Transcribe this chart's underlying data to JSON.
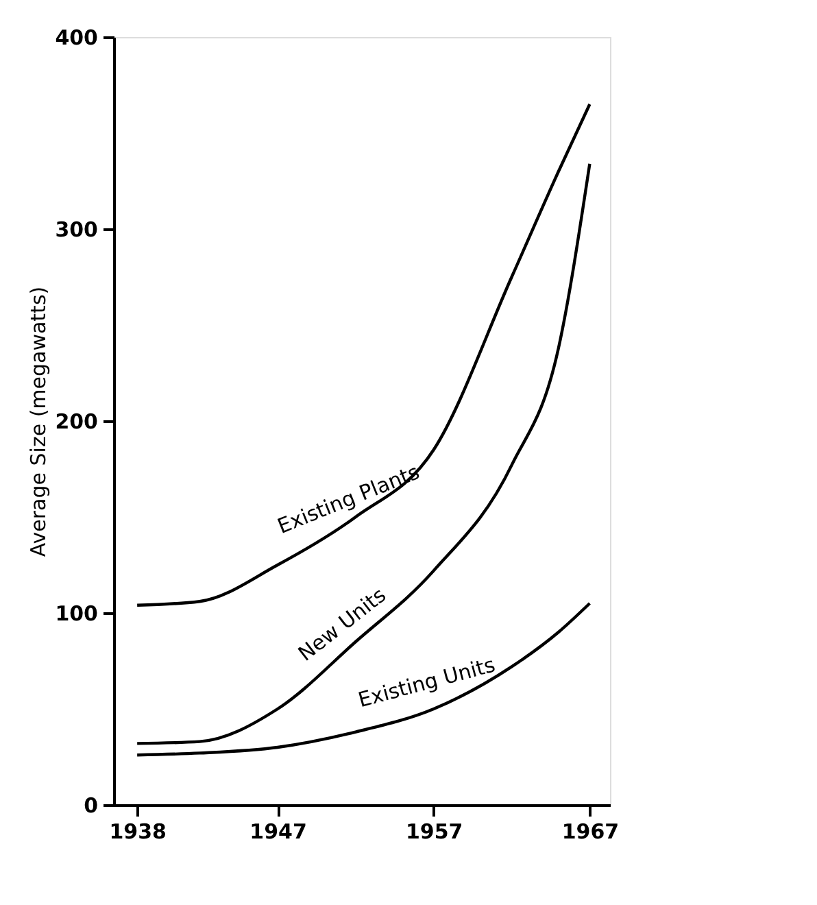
{
  "chart_data": {
    "type": "line",
    "ylabel": "Average Size (megawatts)",
    "x": [
      1938,
      1942,
      1947,
      1952,
      1957,
      1962,
      1965,
      1967
    ],
    "series": [
      {
        "name": "Existing Plants",
        "color": "#000000",
        "values": [
          104,
          106,
          125,
          150,
          185,
          275,
          330,
          365
        ]
      },
      {
        "name": "New Units",
        "color": "#000000",
        "values": [
          32,
          33,
          50,
          85,
          122,
          177,
          238,
          334
        ]
      },
      {
        "name": "Existing Units",
        "color": "#000000",
        "values": [
          26,
          27,
          30,
          38,
          50,
          72,
          90,
          105
        ]
      }
    ],
    "xlim": [
      1936.5,
      1968.3
    ],
    "ylim": [
      0,
      400
    ],
    "xticks": [
      1938,
      1947,
      1957,
      1967
    ],
    "yticks": [
      0,
      100,
      200,
      300,
      400
    ],
    "grid": false,
    "marker": "none",
    "line_style": "solid"
  }
}
